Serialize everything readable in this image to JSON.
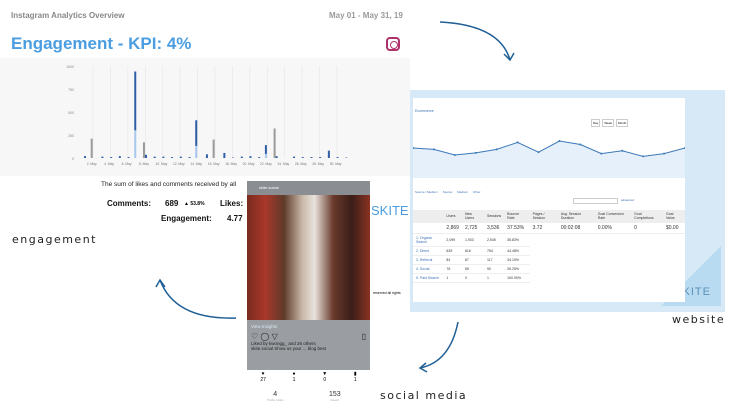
{
  "overview": {
    "title": "Instagram Analytics Overview",
    "date_range": "May 01 - May 31, 19",
    "heading": "Engagement - KPI: 4%",
    "caption": "The sum of likes and comments received by all",
    "comments_label": "Comments:",
    "comments_value": "689",
    "comments_change": "▲ 53.8%",
    "likes_label": "Likes:",
    "engagement_label": "Engagement:",
    "engagement_value": "4.77"
  },
  "chart_data": {
    "type": "bar",
    "stacked": true,
    "ylim": [
      0,
      1000
    ],
    "yticks": [
      "0",
      "250",
      "500",
      "750",
      "1000"
    ],
    "categories": [
      "1",
      "2",
      "3",
      "4",
      "5",
      "6",
      "7",
      "8",
      "9",
      "10",
      "11",
      "12",
      "13",
      "14",
      "15",
      "16",
      "17",
      "18",
      "19",
      "20",
      "21",
      "22",
      "23",
      "24",
      "25",
      "26",
      "27",
      "28",
      "29",
      "30",
      "31"
    ],
    "xtick_labels": [
      "2. May",
      "4. May",
      "6. May",
      "8. May",
      "10. May",
      "12. May",
      "14. May",
      "16. May",
      "18. May",
      "20. May",
      "22. May",
      "24. May",
      "26. May",
      "28. May",
      "30. May"
    ],
    "series": [
      {
        "color": "#2f5ea8",
        "values": [
          20,
          0,
          15,
          10,
          20,
          10,
          940,
          35,
          15,
          15,
          10,
          15,
          10,
          410,
          40,
          0,
          55,
          5,
          15,
          20,
          10,
          140,
          20,
          0,
          15,
          10,
          10,
          10,
          80,
          10,
          5
        ]
      },
      {
        "color": "#9a9a9a",
        "values": [
          0,
          210,
          0,
          0,
          0,
          0,
          0,
          170,
          0,
          0,
          0,
          0,
          0,
          0,
          0,
          200,
          0,
          0,
          0,
          0,
          0,
          0,
          320,
          0,
          0,
          0,
          0,
          0,
          0,
          0,
          0
        ]
      }
    ]
  },
  "website": {
    "tab": "Ecommerce",
    "buttons": [
      "Day",
      "Week",
      "Month"
    ],
    "links": [
      "Source / Medium",
      "Source",
      "Medium",
      "Other"
    ],
    "search_link": "advanced",
    "headers": [
      "Users",
      "New Users",
      "Sessions",
      "Bounce Rate",
      "Pages / Session",
      "Avg. Session Duration",
      "Goal Conversion Rate",
      "Goal Completions",
      "Goal Value"
    ],
    "totals": [
      "2,869",
      "2,725",
      "3,536",
      "37.53%",
      "3.72",
      "00:02:08",
      "0.00%",
      "0",
      "$0.00"
    ],
    "rows": [
      {
        "label": "1. Organic Search",
        "vals": [
          "2,099",
          "1,933",
          "2,545",
          "35.83%"
        ]
      },
      {
        "label": "2. Direct",
        "vals": [
          "639",
          "616",
          "754",
          "44.48%"
        ]
      },
      {
        "label": "3. Referral",
        "vals": [
          "84",
          "67",
          "117",
          "34.19%"
        ]
      },
      {
        "label": "4. Social",
        "vals": [
          "76",
          "65",
          "90",
          "26.25%"
        ]
      },
      {
        "label": "5. Paid Search",
        "vals": [
          "1",
          "0",
          "1",
          "100.00%"
        ]
      }
    ],
    "footer": "reserved all rights",
    "logo": "SKITE",
    "line": [
      50,
      48,
      40,
      43,
      48,
      58,
      44,
      60,
      55,
      42,
      46,
      38,
      42,
      50
    ]
  },
  "social": {
    "account": "skite.social",
    "view_insights": "View Insights",
    "liked_by": "Liked by kwongg_ and 26 others",
    "post_caption": "skite.social Show us your ... blog best",
    "stats": [
      {
        "icon": "heart-icon",
        "value": "27"
      },
      {
        "icon": "comment-icon",
        "value": "1"
      },
      {
        "icon": "send-icon",
        "value": "0"
      },
      {
        "icon": "bookmark-icon",
        "value": "1"
      }
    ],
    "profile_visits": "4",
    "profile_visits_label": "Profile Visits",
    "reach": "153",
    "reach_label": "Reach"
  },
  "logo": "SKITE",
  "labels": {
    "engagement": "engagement",
    "website": "website",
    "social": "social media"
  },
  "accent": "#1f5f95"
}
